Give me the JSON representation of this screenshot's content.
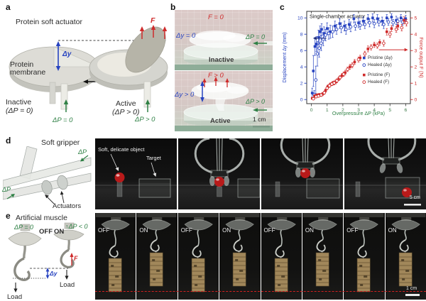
{
  "panels": {
    "a": {
      "tag": "a",
      "title": "Protein soft actuator",
      "membrane_label": "Protein membrane",
      "dy_label": "Δy",
      "force_label": "F",
      "inactive_label": "Inactive",
      "inactive_sub": "(ΔP = 0)",
      "active_label": "Active",
      "active_sub": "(ΔP > 0)",
      "dp_zero": "ΔP = 0",
      "dp_pos": "ΔP > 0"
    },
    "b": {
      "tag": "b",
      "top": {
        "force": "F = 0",
        "dy": "Δy = 0",
        "dp": "ΔP = 0",
        "state": "Inactive"
      },
      "bottom": {
        "force": "F > 0",
        "dy": "Δy > 0",
        "dp": "ΔP > 0",
        "state": "Active"
      },
      "scale": "1 cm"
    },
    "c": {
      "tag": "c"
    },
    "d": {
      "tag": "d",
      "title": "Soft gripper",
      "dp_label": "ΔP",
      "actuators_label": "Actuators",
      "object_label": "Soft, delicate object",
      "target_label": "Target",
      "scale": "5 cm"
    },
    "e": {
      "tag": "e",
      "title": "Artificial muscle",
      "dp_zero": "ΔP = 0",
      "dp_neg": "↑ΔP < 0",
      "off_label": "OFF",
      "on_label": "ON",
      "force_label": "F",
      "dy_label": "Δy",
      "load_label": "Load",
      "frames": [
        "OFF",
        "ON",
        "OFF",
        "ON",
        "OFF",
        "ON",
        "OFF",
        "ON"
      ],
      "scale": "1 cm"
    }
  },
  "chart_data": {
    "type": "scatter",
    "title": "Single-chamber actuator",
    "xlabel": "Overpressure ΔP (kPa)",
    "ylabel_left": "Displacement Δy (mm)",
    "ylabel_right": "Force output F (N)",
    "xlim": [
      -0.3,
      6.3
    ],
    "ylim_left": [
      -0.5,
      10.8
    ],
    "ylim_right": [
      -0.25,
      5.4
    ],
    "xticks": [
      0,
      1,
      2,
      3,
      4,
      5,
      6
    ],
    "yticks_left": [
      0,
      2,
      4,
      6,
      8,
      10
    ],
    "yticks_right": [
      0,
      1,
      2,
      3,
      4,
      5
    ],
    "grid": false,
    "legend_position": "inside-right",
    "colors": {
      "displacement": "#2743c0",
      "force": "#cf2b2b",
      "xaxis": "#2f8045",
      "xticks": "#3f7c4c",
      "frame": "#333333"
    },
    "annotations": {
      "left_arrow": {
        "axis": "left",
        "y": 7.5,
        "x_from": 0.95,
        "x_to": 0.1
      },
      "right_arrow": {
        "axis": "right",
        "y": 3.05,
        "x_from": 4.3,
        "x_to": 6.15
      }
    },
    "series": [
      {
        "name": "Pristine (Δy)",
        "axis": "left",
        "marker": "square-filled",
        "color": "#2743c0",
        "points": [
          [
            0.05,
            0.8,
            0.6
          ],
          [
            0.12,
            3.5,
            1.9
          ],
          [
            0.22,
            6.5,
            1.1
          ],
          [
            0.32,
            6.8,
            0.9
          ],
          [
            0.45,
            7.6,
            0.9
          ],
          [
            0.55,
            8.3,
            0.7
          ],
          [
            0.65,
            8.6,
            0.7
          ],
          [
            0.8,
            8.1,
            0.8
          ],
          [
            1.0,
            8.7,
            0.7
          ],
          [
            1.2,
            8.3,
            0.8
          ],
          [
            1.5,
            9.0,
            0.6
          ],
          [
            1.8,
            9.3,
            0.6
          ],
          [
            2.1,
            9.0,
            0.6
          ],
          [
            2.4,
            9.2,
            0.6
          ],
          [
            2.7,
            9.9,
            0.5
          ],
          [
            3.0,
            9.4,
            0.6
          ],
          [
            3.3,
            9.6,
            0.5
          ],
          [
            3.6,
            9.9,
            0.5
          ],
          [
            3.9,
            10.0,
            0.5
          ],
          [
            4.2,
            9.9,
            0.5
          ],
          [
            4.5,
            9.6,
            0.5
          ],
          [
            4.8,
            10.0,
            0.4
          ],
          [
            5.1,
            10.1,
            0.4
          ],
          [
            5.4,
            9.7,
            0.5
          ],
          [
            5.7,
            10.0,
            0.4
          ],
          [
            6.0,
            9.9,
            0.4
          ]
        ]
      },
      {
        "name": "Healed (Δy)",
        "axis": "left",
        "marker": "circle-open",
        "color": "#2743c0",
        "points": [
          [
            0.18,
            0.6,
            0.5
          ],
          [
            0.28,
            2.4,
            1.7
          ],
          [
            0.38,
            5.6,
            1.5
          ],
          [
            0.5,
            6.3,
            1.1
          ],
          [
            0.62,
            6.9,
            0.9
          ],
          [
            0.75,
            7.4,
            0.8
          ],
          [
            0.9,
            7.9,
            0.7
          ],
          [
            1.1,
            8.1,
            0.7
          ],
          [
            1.35,
            8.3,
            0.7
          ],
          [
            1.6,
            8.6,
            0.6
          ],
          [
            1.9,
            8.8,
            0.6
          ],
          [
            2.2,
            8.6,
            0.6
          ],
          [
            2.5,
            8.9,
            0.6
          ],
          [
            2.8,
            9.0,
            0.5
          ],
          [
            3.1,
            9.1,
            0.5
          ],
          [
            3.4,
            9.2,
            0.5
          ],
          [
            3.7,
            9.4,
            0.5
          ],
          [
            4.0,
            9.3,
            0.5
          ],
          [
            4.3,
            9.5,
            0.5
          ],
          [
            4.6,
            9.2,
            0.5
          ],
          [
            4.9,
            9.5,
            0.4
          ],
          [
            5.2,
            9.4,
            0.4
          ],
          [
            5.5,
            9.6,
            0.4
          ],
          [
            5.8,
            9.5,
            0.4
          ]
        ]
      },
      {
        "name": "Pristine (F)",
        "axis": "right",
        "marker": "square-filled",
        "color": "#cf2b2b",
        "points": [
          [
            0.05,
            0.08,
            0.06
          ],
          [
            0.2,
            0.22,
            0.08
          ],
          [
            0.35,
            0.28,
            0.08
          ],
          [
            0.5,
            0.3,
            0.08
          ],
          [
            0.7,
            0.33,
            0.1
          ],
          [
            0.9,
            0.55,
            0.1
          ],
          [
            1.05,
            0.8,
            0.1
          ],
          [
            1.2,
            0.92,
            0.1
          ],
          [
            1.35,
            1.0,
            0.12
          ],
          [
            1.55,
            1.08,
            0.12
          ],
          [
            1.75,
            1.28,
            0.12
          ],
          [
            1.95,
            1.48,
            0.12
          ],
          [
            2.15,
            1.65,
            0.14
          ],
          [
            2.45,
            2.0,
            0.15
          ],
          [
            2.75,
            2.3,
            0.15
          ],
          [
            3.1,
            2.55,
            0.16
          ],
          [
            3.6,
            3.1,
            0.18
          ],
          [
            4.0,
            3.35,
            0.16
          ],
          [
            4.35,
            3.5,
            0.16
          ],
          [
            4.8,
            4.15,
            0.2
          ],
          [
            5.1,
            4.35,
            0.18
          ],
          [
            5.5,
            4.5,
            0.2
          ],
          [
            5.9,
            4.85,
            0.22
          ]
        ]
      },
      {
        "name": "Healed (F)",
        "axis": "right",
        "marker": "circle-open",
        "color": "#cf2b2b",
        "points": [
          [
            0.12,
            0.05,
            0.05
          ],
          [
            0.3,
            0.18,
            0.08
          ],
          [
            0.45,
            0.22,
            0.08
          ],
          [
            0.62,
            0.28,
            0.09
          ],
          [
            0.82,
            0.42,
            0.1
          ],
          [
            1.0,
            0.7,
            0.1
          ],
          [
            1.15,
            0.85,
            0.1
          ],
          [
            1.3,
            0.95,
            0.1
          ],
          [
            1.45,
            1.02,
            0.12
          ],
          [
            1.62,
            1.15,
            0.12
          ],
          [
            1.82,
            1.35,
            0.12
          ],
          [
            2.05,
            1.55,
            0.13
          ],
          [
            2.3,
            1.85,
            0.14
          ],
          [
            2.6,
            2.1,
            0.15
          ],
          [
            3.0,
            2.45,
            0.15
          ],
          [
            3.4,
            2.8,
            0.16
          ],
          [
            3.8,
            3.2,
            0.16
          ],
          [
            4.2,
            3.3,
            0.16
          ],
          [
            4.6,
            3.45,
            0.18
          ],
          [
            5.0,
            4.0,
            0.18
          ],
          [
            5.4,
            4.3,
            0.18
          ],
          [
            5.75,
            4.4,
            0.2
          ],
          [
            6.05,
            4.7,
            0.2
          ]
        ]
      }
    ]
  }
}
